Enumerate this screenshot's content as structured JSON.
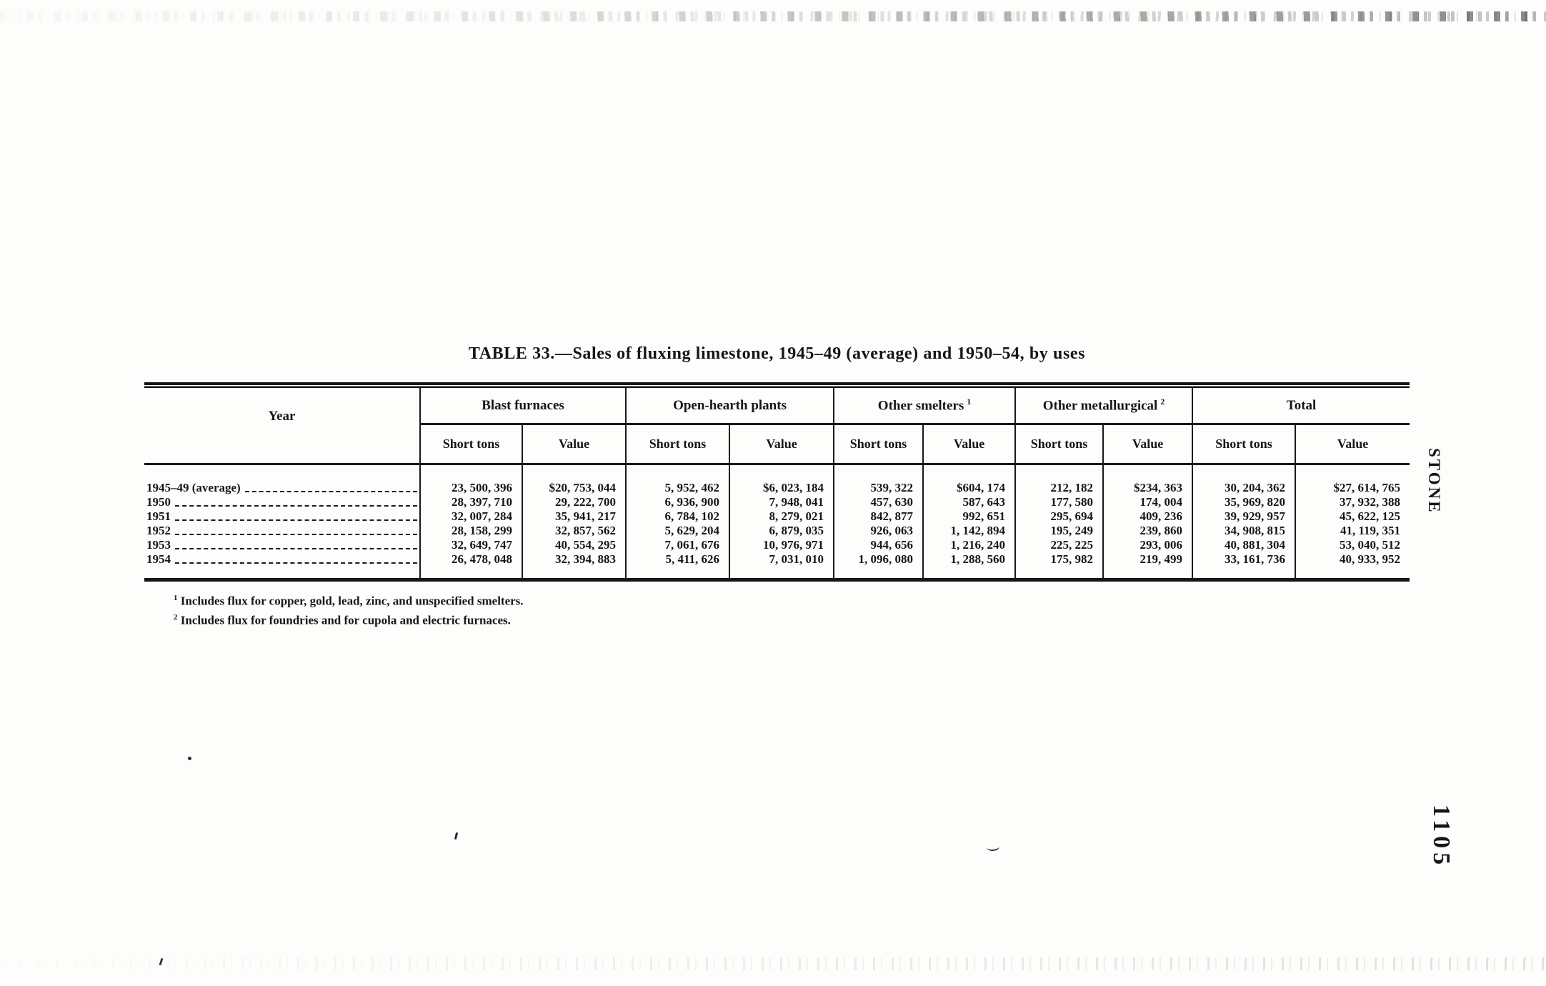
{
  "page": {
    "running_head": "STONE",
    "page_number": "1105"
  },
  "table": {
    "title": "TABLE 33.—Sales of fluxing limestone, 1945–49 (average) and 1950–54, by uses",
    "year_header": "Year",
    "column_groups": [
      {
        "label": "Blast furnaces",
        "footnote_ref": ""
      },
      {
        "label": "Open-hearth plants",
        "footnote_ref": ""
      },
      {
        "label": "Other smelters",
        "footnote_ref": "1"
      },
      {
        "label": "Other metallurgical",
        "footnote_ref": "2"
      },
      {
        "label": "Total",
        "footnote_ref": ""
      }
    ],
    "subheaders": [
      "Short tons",
      "Value"
    ],
    "rows": [
      {
        "year": "1945–49 (average)",
        "values": [
          "23, 500, 396",
          "$20, 753, 044",
          "5, 952, 462",
          "$6, 023, 184",
          "539, 322",
          "$604, 174",
          "212, 182",
          "$234, 363",
          "30, 204, 362",
          "$27, 614, 765"
        ]
      },
      {
        "year": "1950",
        "values": [
          "28, 397, 710",
          "29, 222, 700",
          "6, 936, 900",
          "7, 948, 041",
          "457, 630",
          "587, 643",
          "177, 580",
          "174, 004",
          "35, 969, 820",
          "37, 932, 388"
        ]
      },
      {
        "year": "1951",
        "values": [
          "32, 007, 284",
          "35, 941, 217",
          "6, 784, 102",
          "8, 279, 021",
          "842, 877",
          "992, 651",
          "295, 694",
          "409, 236",
          "39, 929, 957",
          "45, 622, 125"
        ]
      },
      {
        "year": "1952",
        "values": [
          "28, 158, 299",
          "32, 857, 562",
          "5, 629, 204",
          "6, 879, 035",
          "926, 063",
          "1, 142, 894",
          "195, 249",
          "239, 860",
          "34, 908, 815",
          "41, 119, 351"
        ]
      },
      {
        "year": "1953",
        "values": [
          "32, 649, 747",
          "40, 554, 295",
          "7, 061, 676",
          "10, 976, 971",
          "944, 656",
          "1, 216, 240",
          "225, 225",
          "293, 006",
          "40, 881, 304",
          "53, 040, 512"
        ]
      },
      {
        "year": "1954",
        "values": [
          "26, 478, 048",
          "32, 394, 883",
          "5, 411, 626",
          "7, 031, 010",
          "1, 096, 080",
          "1, 288, 560",
          "175, 982",
          "219, 499",
          "33, 161, 736",
          "40, 933, 952"
        ]
      }
    ],
    "footnotes": [
      {
        "marker": "1",
        "text": "Includes flux for copper, gold, lead, zinc, and unspecified smelters."
      },
      {
        "marker": "2",
        "text": "Includes flux for foundries and for cupola and electric furnaces."
      }
    ]
  }
}
